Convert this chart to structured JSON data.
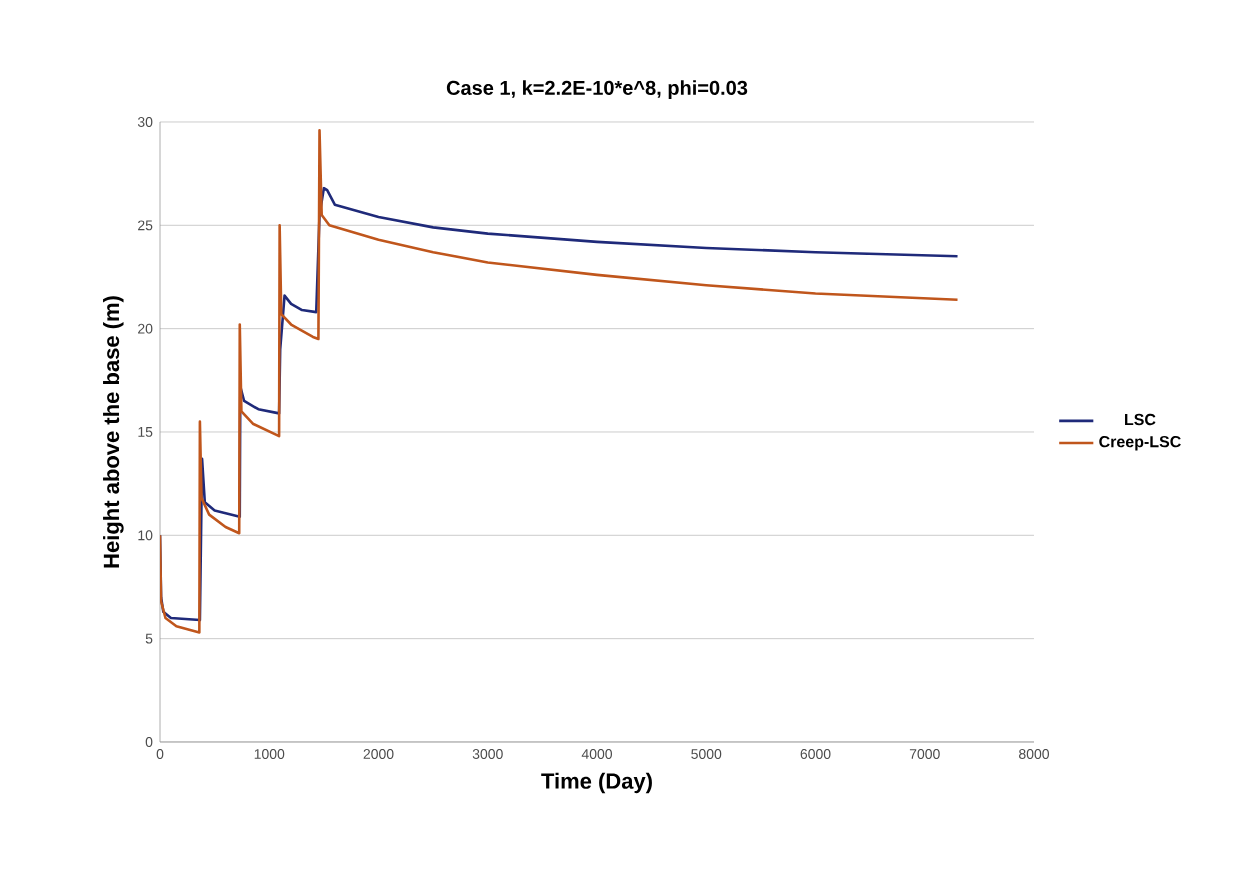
{
  "chart_data": {
    "type": "line",
    "title": "Case 1,  k=2.2E-10*e^8, phi=0.03",
    "xlabel": "Time (Day)",
    "ylabel": "Height above the base (m)",
    "xlim": [
      0,
      8000
    ],
    "xticks": [
      0,
      1000,
      2000,
      3000,
      4000,
      5000,
      6000,
      7000,
      8000
    ],
    "ylim": [
      0,
      30
    ],
    "yticks": [
      0,
      5,
      10,
      15,
      20,
      25,
      30
    ],
    "grid": "y",
    "legend": "right",
    "line_style": "solid",
    "marker": "none",
    "series": [
      {
        "name": "LSC",
        "color": "#1f2a7a",
        "x": [
          0,
          10,
          30,
          100,
          365,
          385,
          410,
          500,
          730,
          735,
          770,
          900,
          1090,
          1100,
          1140,
          1200,
          1300,
          1430,
          1460,
          1500,
          1530,
          1600,
          2000,
          2500,
          3000,
          4000,
          5000,
          6000,
          7300
        ],
        "values": [
          10,
          7,
          6.3,
          6.0,
          5.9,
          13.7,
          11.6,
          11.2,
          10.9,
          17.2,
          16.5,
          16.1,
          15.9,
          19,
          21.6,
          21.2,
          20.9,
          20.8,
          25.5,
          26.8,
          26.7,
          26.0,
          25.4,
          24.9,
          24.6,
          24.2,
          23.9,
          23.7,
          23.5
        ]
      },
      {
        "name": "Creep-LSC",
        "color": "#c0561c",
        "x": [
          0,
          10,
          50,
          150,
          360,
          365,
          380,
          450,
          600,
          725,
          730,
          745,
          850,
          1090,
          1095,
          1110,
          1200,
          1400,
          1450,
          1460,
          1480,
          1550,
          2000,
          2500,
          3000,
          4000,
          5000,
          6000,
          7300
        ],
        "values": [
          10,
          6.8,
          6,
          5.6,
          5.3,
          15.5,
          11.8,
          11,
          10.4,
          10.1,
          20.2,
          16,
          15.4,
          14.8,
          25,
          20.7,
          20.2,
          19.6,
          19.5,
          29.6,
          25.5,
          25,
          24.3,
          23.7,
          23.2,
          22.6,
          22.1,
          21.7,
          21.4
        ]
      }
    ]
  }
}
